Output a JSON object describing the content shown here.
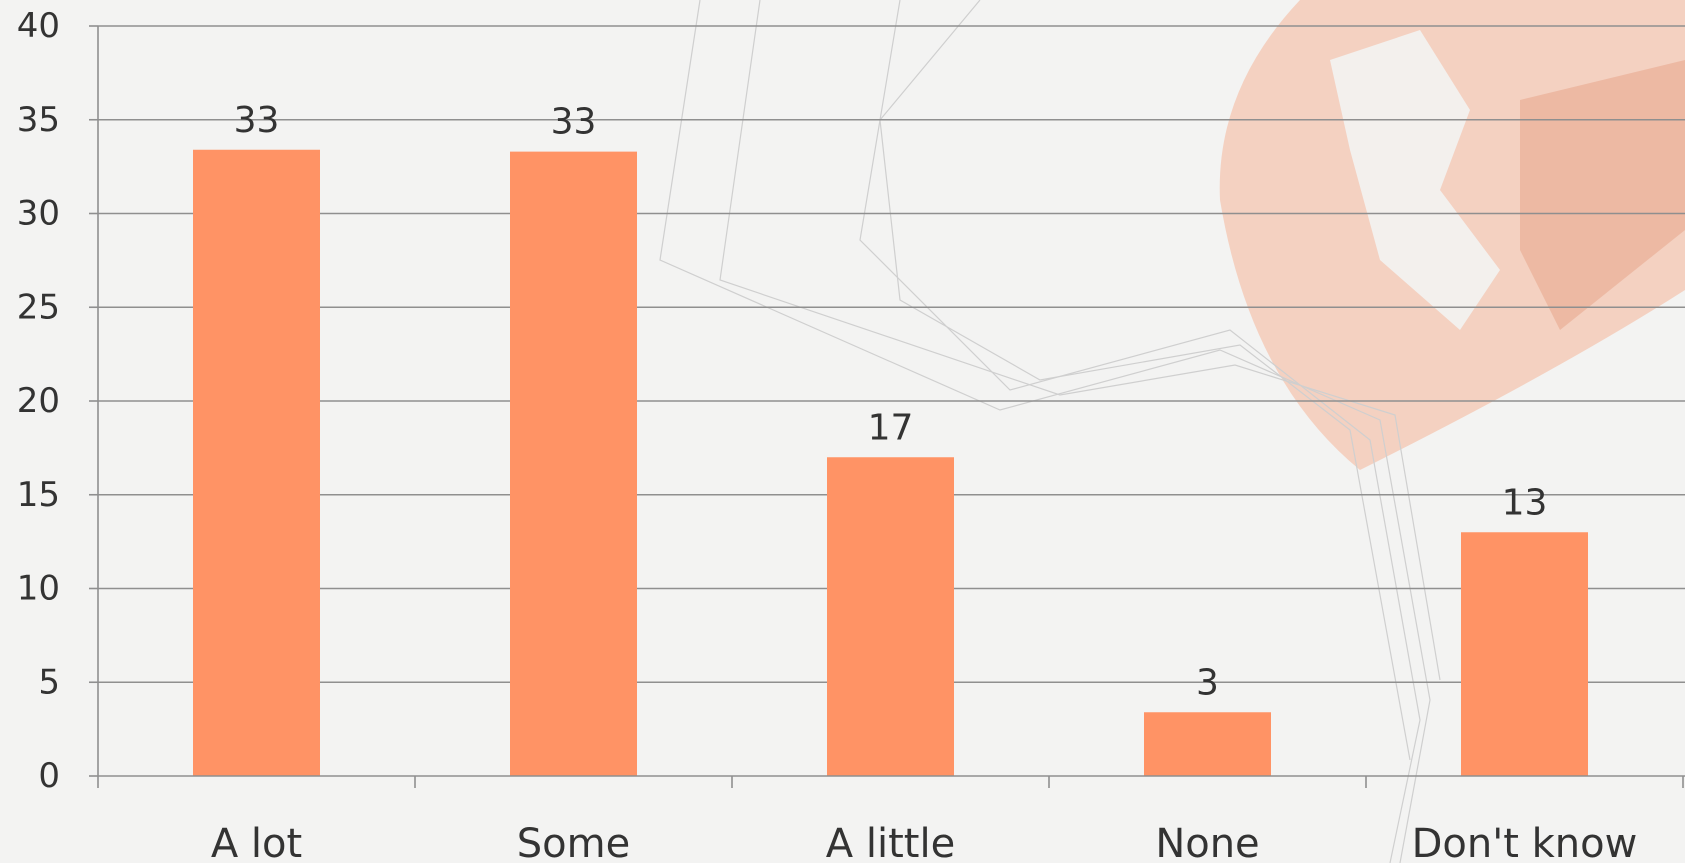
{
  "colors": {
    "bar": "#ff9365",
    "grid": "#8f8f8f",
    "text": "#333333",
    "background": "#f3f3f2",
    "watermark": "#f4c5b0"
  },
  "chart_data": {
    "type": "bar",
    "categories": [
      "A lot",
      "Some",
      "A little",
      "None",
      "Don't know"
    ],
    "values": [
      33.4,
      33.3,
      17,
      3.4,
      13
    ],
    "data_labels": [
      "33",
      "33",
      "17",
      "3",
      "13"
    ],
    "title": "",
    "xlabel": "",
    "ylabel": "",
    "ylim": [
      0,
      40
    ],
    "yticks": [
      0,
      5,
      10,
      15,
      20,
      25,
      30,
      35,
      40
    ],
    "grid": true,
    "legend": "none"
  }
}
